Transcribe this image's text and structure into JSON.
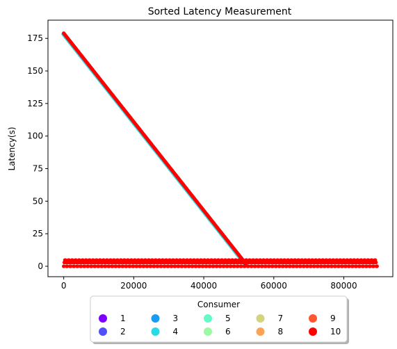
{
  "chart_data": {
    "type": "scatter",
    "title": "Sorted Latency Measurement",
    "xlabel": "",
    "ylabel": "Latency(s)",
    "xlim": [
      -4500,
      94000
    ],
    "ylim": [
      -8,
      189
    ],
    "xticks": [
      0,
      20000,
      40000,
      60000,
      80000
    ],
    "yticks": [
      0,
      25,
      50,
      75,
      100,
      125,
      150,
      175
    ],
    "grid": false,
    "legend": {
      "title": "Consumer",
      "placement": "bottom-center",
      "columns": 5,
      "entries": [
        {
          "label": "1",
          "color": "#7f00ff"
        },
        {
          "label": "2",
          "color": "#4f4ffb"
        },
        {
          "label": "3",
          "color": "#1a9cf3"
        },
        {
          "label": "4",
          "color": "#2ad9e1"
        },
        {
          "label": "5",
          "color": "#62fbc6"
        },
        {
          "label": "6",
          "color": "#9cf9a3"
        },
        {
          "label": "7",
          "color": "#d3d47e"
        },
        {
          "label": "8",
          "color": "#ffa256"
        },
        {
          "label": "9",
          "color": "#ff5530"
        },
        {
          "label": "10",
          "color": "#ff0000"
        }
      ]
    },
    "series": [
      {
        "name": "10",
        "description_points": "sorted latency: diagonal band and flat low band",
        "diagonal": {
          "x_start": 0,
          "y_start": 179,
          "x_end": 52000,
          "y_end": 2
        },
        "low_band": {
          "x_start": 0,
          "x_end": 89500,
          "y_min": 0,
          "y_max": 5
        }
      }
    ]
  }
}
